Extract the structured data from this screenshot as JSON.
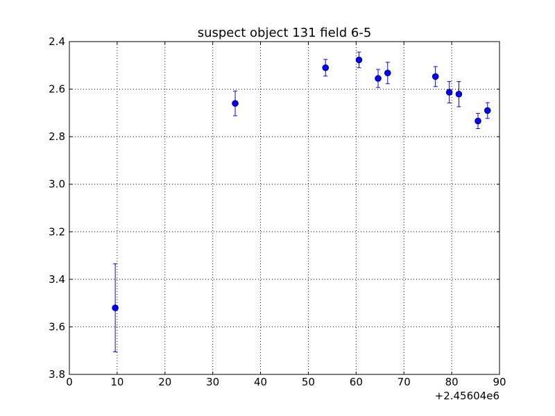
{
  "chart_data": {
    "type": "scatter",
    "title": "suspect object 131 field 6-5",
    "xlabel": "",
    "ylabel": "",
    "x_offset_label": "+2.45604e6",
    "xlim": [
      0,
      90
    ],
    "ylim": [
      2.4,
      3.8
    ],
    "y_inverted": true,
    "grid": true,
    "x_ticks": [
      "0",
      "10",
      "20",
      "30",
      "40",
      "50",
      "60",
      "70",
      "80",
      "90"
    ],
    "y_ticks": [
      "2.4",
      "2.6",
      "2.8",
      "3.0",
      "3.2",
      "3.4",
      "3.6",
      "3.8"
    ],
    "marker_color": "#0000ff",
    "series": [
      {
        "points": [
          {
            "x": 9.6,
            "y": 3.52,
            "err": 0.185
          },
          {
            "x": 34.7,
            "y": 2.66,
            "err": 0.052
          },
          {
            "x": 53.6,
            "y": 2.51,
            "err": 0.035
          },
          {
            "x": 60.6,
            "y": 2.477,
            "err": 0.033
          },
          {
            "x": 64.6,
            "y": 2.555,
            "err": 0.038
          },
          {
            "x": 66.6,
            "y": 2.532,
            "err": 0.045
          },
          {
            "x": 76.6,
            "y": 2.547,
            "err": 0.042
          },
          {
            "x": 79.5,
            "y": 2.613,
            "err": 0.045
          },
          {
            "x": 81.5,
            "y": 2.621,
            "err": 0.053
          },
          {
            "x": 85.5,
            "y": 2.734,
            "err": 0.032
          },
          {
            "x": 87.5,
            "y": 2.69,
            "err": 0.033
          }
        ]
      }
    ]
  }
}
